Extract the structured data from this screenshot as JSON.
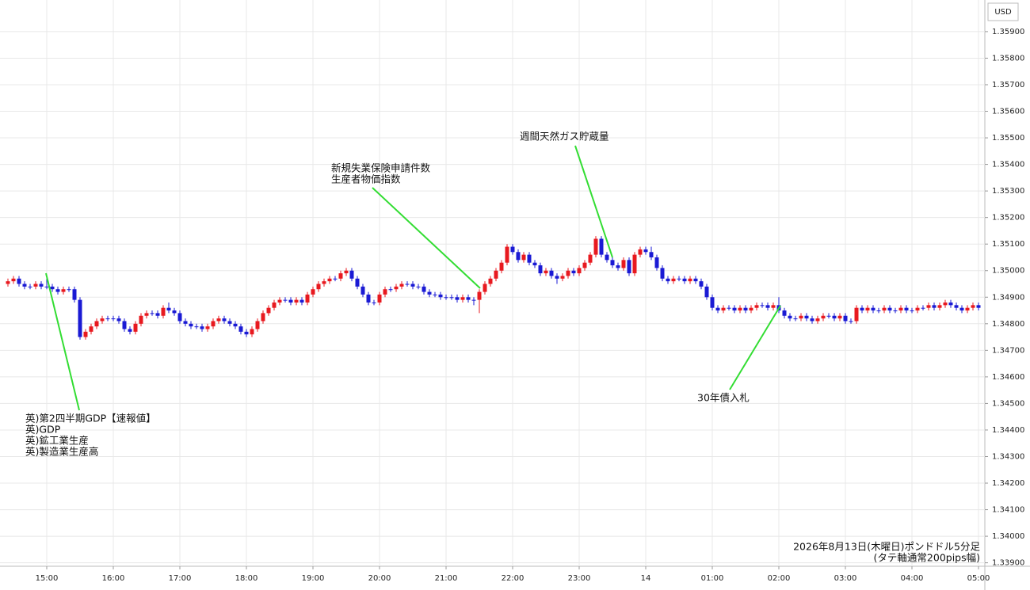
{
  "chart_data": {
    "type": "candlestick",
    "currency": "USD",
    "up_color": "#e8191f",
    "down_color": "#1a1ad4",
    "grid": true,
    "ylim": [
      1.33887,
      1.36019
    ],
    "yticks": [
      {
        "value": 1.359,
        "label": "1.35900"
      },
      {
        "value": 1.358,
        "label": "1.35800"
      },
      {
        "value": 1.357,
        "label": "1.35700"
      },
      {
        "value": 1.356,
        "label": "1.35600"
      },
      {
        "value": 1.355,
        "label": "1.35500"
      },
      {
        "value": 1.354,
        "label": "1.35400"
      },
      {
        "value": 1.353,
        "label": "1.35300"
      },
      {
        "value": 1.352,
        "label": "1.35200"
      },
      {
        "value": 1.351,
        "label": "1.35100"
      },
      {
        "value": 1.35,
        "label": "1.35000"
      },
      {
        "value": 1.349,
        "label": "1.34900"
      },
      {
        "value": 1.348,
        "label": "1.34800"
      },
      {
        "value": 1.347,
        "label": "1.34700"
      },
      {
        "value": 1.346,
        "label": "1.34600"
      },
      {
        "value": 1.345,
        "label": "1.34500"
      },
      {
        "value": 1.344,
        "label": "1.34400"
      },
      {
        "value": 1.343,
        "label": "1.34300"
      },
      {
        "value": 1.342,
        "label": "1.34200"
      },
      {
        "value": 1.341,
        "label": "1.34100"
      },
      {
        "value": 1.34,
        "label": "1.34000"
      },
      {
        "value": 1.339,
        "label": "1.33900"
      }
    ],
    "categories": [
      null,
      null,
      null,
      null,
      null,
      null,
      null,
      "15:00",
      null,
      null,
      null,
      null,
      null,
      null,
      null,
      null,
      null,
      null,
      null,
      "16:00",
      null,
      null,
      null,
      null,
      null,
      null,
      null,
      null,
      null,
      null,
      null,
      "17:00",
      null,
      null,
      null,
      null,
      null,
      null,
      null,
      null,
      null,
      null,
      null,
      "18:00",
      null,
      null,
      null,
      null,
      null,
      null,
      null,
      null,
      null,
      null,
      null,
      "19:00",
      null,
      null,
      null,
      null,
      null,
      null,
      null,
      null,
      null,
      null,
      null,
      "20:00",
      null,
      null,
      null,
      null,
      null,
      null,
      null,
      null,
      null,
      null,
      null,
      "21:00",
      null,
      null,
      null,
      null,
      null,
      null,
      null,
      null,
      null,
      null,
      null,
      "22:00",
      null,
      null,
      null,
      null,
      null,
      null,
      null,
      null,
      null,
      null,
      null,
      "23:00",
      null,
      null,
      null,
      null,
      null,
      null,
      null,
      null,
      null,
      null,
      null,
      "14",
      null,
      null,
      null,
      null,
      null,
      null,
      null,
      null,
      null,
      null,
      null,
      "01:00",
      null,
      null,
      null,
      null,
      null,
      null,
      null,
      null,
      null,
      null,
      null,
      "02:00",
      null,
      null,
      null,
      null,
      null,
      null,
      null,
      null,
      null,
      null,
      null,
      "03:00",
      null,
      null,
      null,
      null,
      null,
      null,
      null,
      null,
      null,
      null,
      null,
      "04:00",
      null,
      null,
      null,
      null,
      null,
      null,
      null,
      null,
      null,
      null,
      null,
      "05:00"
    ],
    "candles": [
      [
        1.3495,
        1.3497,
        1.3494,
        1.3496
      ],
      [
        1.3496,
        1.3498,
        1.3495,
        1.3497
      ],
      [
        1.3497,
        1.3498,
        1.3494,
        1.3495
      ],
      [
        1.3495,
        1.3496,
        1.3493,
        1.3494
      ],
      [
        1.3494,
        1.3495,
        1.3493,
        1.3494
      ],
      [
        1.3494,
        1.3496,
        1.3493,
        1.3495
      ],
      [
        1.3495,
        1.3496,
        1.3493,
        1.3494
      ],
      [
        1.3494,
        1.3498,
        1.3493,
        1.3494
      ],
      [
        1.3494,
        1.3495,
        1.3492,
        1.3493
      ],
      [
        1.3493,
        1.3494,
        1.3491,
        1.3492
      ],
      [
        1.3492,
        1.3494,
        1.3491,
        1.3493
      ],
      [
        1.3493,
        1.3494,
        1.3492,
        1.3493
      ],
      [
        1.3493,
        1.3494,
        1.3488,
        1.3489
      ],
      [
        1.3489,
        1.349,
        1.3474,
        1.3475
      ],
      [
        1.3475,
        1.3478,
        1.3474,
        1.3477
      ],
      [
        1.3477,
        1.348,
        1.3476,
        1.3479
      ],
      [
        1.3479,
        1.3482,
        1.3478,
        1.3481
      ],
      [
        1.3481,
        1.3483,
        1.348,
        1.3482
      ],
      [
        1.3482,
        1.3483,
        1.3481,
        1.3482
      ],
      [
        1.3482,
        1.3483,
        1.3481,
        1.3482
      ],
      [
        1.3482,
        1.3483,
        1.348,
        1.3481
      ],
      [
        1.3481,
        1.3482,
        1.3477,
        1.3478
      ],
      [
        1.3478,
        1.3479,
        1.3476,
        1.3477
      ],
      [
        1.3477,
        1.3481,
        1.3476,
        1.348
      ],
      [
        1.348,
        1.3484,
        1.3479,
        1.3483
      ],
      [
        1.3483,
        1.3485,
        1.3482,
        1.3484
      ],
      [
        1.3484,
        1.3485,
        1.3483,
        1.3484
      ],
      [
        1.3484,
        1.3485,
        1.3482,
        1.3483
      ],
      [
        1.3483,
        1.3487,
        1.3482,
        1.3486
      ],
      [
        1.3486,
        1.3488,
        1.3484,
        1.3485
      ],
      [
        1.3485,
        1.3486,
        1.3483,
        1.3484
      ],
      [
        1.3484,
        1.3485,
        1.348,
        1.3481
      ],
      [
        1.3481,
        1.3482,
        1.3479,
        1.348
      ],
      [
        1.348,
        1.3481,
        1.3478,
        1.3479
      ],
      [
        1.3479,
        1.348,
        1.3478,
        1.3479
      ],
      [
        1.3479,
        1.348,
        1.3477,
        1.3478
      ],
      [
        1.3478,
        1.348,
        1.3477,
        1.3479
      ],
      [
        1.3479,
        1.3482,
        1.3478,
        1.3481
      ],
      [
        1.3481,
        1.3483,
        1.348,
        1.3482
      ],
      [
        1.3482,
        1.3483,
        1.348,
        1.3481
      ],
      [
        1.3481,
        1.3482,
        1.3479,
        1.348
      ],
      [
        1.348,
        1.3481,
        1.3478,
        1.3479
      ],
      [
        1.3479,
        1.348,
        1.3476,
        1.3477
      ],
      [
        1.3477,
        1.3478,
        1.3475,
        1.3476
      ],
      [
        1.3476,
        1.3479,
        1.3475,
        1.3478
      ],
      [
        1.3478,
        1.3482,
        1.3477,
        1.3481
      ],
      [
        1.3481,
        1.3485,
        1.348,
        1.3484
      ],
      [
        1.3484,
        1.3487,
        1.3483,
        1.3486
      ],
      [
        1.3486,
        1.3489,
        1.3485,
        1.3488
      ],
      [
        1.3488,
        1.349,
        1.3487,
        1.3489
      ],
      [
        1.3489,
        1.349,
        1.3488,
        1.3489
      ],
      [
        1.3489,
        1.349,
        1.3487,
        1.3488
      ],
      [
        1.3488,
        1.349,
        1.3487,
        1.3489
      ],
      [
        1.3489,
        1.349,
        1.3487,
        1.3488
      ],
      [
        1.3488,
        1.3492,
        1.3487,
        1.3491
      ],
      [
        1.3491,
        1.3494,
        1.349,
        1.3493
      ],
      [
        1.3493,
        1.3496,
        1.3492,
        1.3495
      ],
      [
        1.3495,
        1.3497,
        1.3494,
        1.3496
      ],
      [
        1.3496,
        1.3498,
        1.3495,
        1.3497
      ],
      [
        1.3497,
        1.3498,
        1.3496,
        1.3497
      ],
      [
        1.3497,
        1.35,
        1.3496,
        1.3499
      ],
      [
        1.3499,
        1.3501,
        1.3498,
        1.35
      ],
      [
        1.35,
        1.3501,
        1.3496,
        1.3497
      ],
      [
        1.3497,
        1.3498,
        1.3493,
        1.3494
      ],
      [
        1.3494,
        1.3495,
        1.349,
        1.3491
      ],
      [
        1.3491,
        1.3492,
        1.3487,
        1.3488
      ],
      [
        1.3488,
        1.3489,
        1.3487,
        1.3488
      ],
      [
        1.3488,
        1.3492,
        1.3487,
        1.3491
      ],
      [
        1.3491,
        1.3494,
        1.349,
        1.3493
      ],
      [
        1.3493,
        1.3494,
        1.3492,
        1.3493
      ],
      [
        1.3493,
        1.3495,
        1.3492,
        1.3494
      ],
      [
        1.3494,
        1.3496,
        1.3493,
        1.3495
      ],
      [
        1.3495,
        1.3496,
        1.3494,
        1.3495
      ],
      [
        1.3495,
        1.3496,
        1.3493,
        1.3494
      ],
      [
        1.3494,
        1.3495,
        1.3493,
        1.3494
      ],
      [
        1.3494,
        1.3495,
        1.3491,
        1.3492
      ],
      [
        1.3492,
        1.3493,
        1.349,
        1.3491
      ],
      [
        1.3491,
        1.3492,
        1.349,
        1.3491
      ],
      [
        1.3491,
        1.3492,
        1.3489,
        1.349
      ],
      [
        1.349,
        1.3491,
        1.3489,
        1.349
      ],
      [
        1.349,
        1.3491,
        1.3489,
        1.349
      ],
      [
        1.349,
        1.3491,
        1.3488,
        1.3489
      ],
      [
        1.3489,
        1.3491,
        1.3488,
        1.349
      ],
      [
        1.349,
        1.3491,
        1.3488,
        1.3489
      ],
      [
        1.3489,
        1.349,
        1.3487,
        1.3489
      ],
      [
        1.3489,
        1.3493,
        1.3484,
        1.3492
      ],
      [
        1.3492,
        1.3496,
        1.3491,
        1.3495
      ],
      [
        1.3495,
        1.3498,
        1.3494,
        1.3497
      ],
      [
        1.3497,
        1.3501,
        1.3496,
        1.35
      ],
      [
        1.35,
        1.3504,
        1.3499,
        1.3503
      ],
      [
        1.3503,
        1.351,
        1.3502,
        1.3509
      ],
      [
        1.3509,
        1.351,
        1.3506,
        1.3507
      ],
      [
        1.3507,
        1.3508,
        1.3503,
        1.3504
      ],
      [
        1.3504,
        1.3507,
        1.3503,
        1.3506
      ],
      [
        1.3506,
        1.3507,
        1.3502,
        1.3503
      ],
      [
        1.3503,
        1.3504,
        1.3501,
        1.3502
      ],
      [
        1.3502,
        1.3503,
        1.3498,
        1.3499
      ],
      [
        1.3499,
        1.3501,
        1.3498,
        1.35
      ],
      [
        1.35,
        1.3501,
        1.3497,
        1.3498
      ],
      [
        1.3498,
        1.3499,
        1.3495,
        1.3497
      ],
      [
        1.3497,
        1.3499,
        1.3496,
        1.3498
      ],
      [
        1.3498,
        1.3501,
        1.3497,
        1.35
      ],
      [
        1.35,
        1.3501,
        1.3498,
        1.3499
      ],
      [
        1.3499,
        1.3502,
        1.3498,
        1.3501
      ],
      [
        1.3501,
        1.3504,
        1.35,
        1.3503
      ],
      [
        1.3503,
        1.3507,
        1.3502,
        1.3506
      ],
      [
        1.3506,
        1.3513,
        1.3505,
        1.3512
      ],
      [
        1.3512,
        1.3513,
        1.3505,
        1.3506
      ],
      [
        1.3506,
        1.3507,
        1.3503,
        1.3504
      ],
      [
        1.3504,
        1.3505,
        1.3501,
        1.3502
      ],
      [
        1.3502,
        1.3503,
        1.35,
        1.3501
      ],
      [
        1.3501,
        1.3505,
        1.35,
        1.3504
      ],
      [
        1.3504,
        1.3505,
        1.3498,
        1.3499
      ],
      [
        1.3499,
        1.3507,
        1.3498,
        1.3506
      ],
      [
        1.3506,
        1.3509,
        1.3505,
        1.3508
      ],
      [
        1.3508,
        1.3509,
        1.3506,
        1.3507
      ],
      [
        1.3507,
        1.3509,
        1.3504,
        1.3505
      ],
      [
        1.3505,
        1.3506,
        1.35,
        1.3501
      ],
      [
        1.3501,
        1.3502,
        1.3496,
        1.3497
      ],
      [
        1.3497,
        1.3498,
        1.3495,
        1.3496
      ],
      [
        1.3496,
        1.3498,
        1.3495,
        1.3497
      ],
      [
        1.3497,
        1.3498,
        1.3496,
        1.3497
      ],
      [
        1.3497,
        1.3498,
        1.3495,
        1.3496
      ],
      [
        1.3496,
        1.3498,
        1.3495,
        1.3497
      ],
      [
        1.3497,
        1.3498,
        1.3495,
        1.3496
      ],
      [
        1.3496,
        1.3497,
        1.3493,
        1.3494
      ],
      [
        1.3494,
        1.3495,
        1.3489,
        1.349
      ],
      [
        1.349,
        1.3491,
        1.3485,
        1.3486
      ],
      [
        1.3486,
        1.3487,
        1.3484,
        1.3485
      ],
      [
        1.3485,
        1.3487,
        1.3484,
        1.3486
      ],
      [
        1.3486,
        1.3487,
        1.3485,
        1.3486
      ],
      [
        1.3486,
        1.3487,
        1.3484,
        1.3485
      ],
      [
        1.3485,
        1.3487,
        1.3484,
        1.3486
      ],
      [
        1.3486,
        1.3487,
        1.3484,
        1.3485
      ],
      [
        1.3485,
        1.3487,
        1.3484,
        1.3486
      ],
      [
        1.3486,
        1.3488,
        1.3485,
        1.3487
      ],
      [
        1.3487,
        1.3488,
        1.3486,
        1.3487
      ],
      [
        1.3487,
        1.3488,
        1.3485,
        1.3486
      ],
      [
        1.3486,
        1.3488,
        1.3485,
        1.3487
      ],
      [
        1.3487,
        1.349,
        1.3484,
        1.3485
      ],
      [
        1.3485,
        1.3486,
        1.3482,
        1.3483
      ],
      [
        1.3483,
        1.3484,
        1.3481,
        1.3482
      ],
      [
        1.3482,
        1.3483,
        1.3481,
        1.3482
      ],
      [
        1.3482,
        1.3484,
        1.3481,
        1.3483
      ],
      [
        1.3483,
        1.3484,
        1.3481,
        1.3482
      ],
      [
        1.3482,
        1.3483,
        1.348,
        1.3481
      ],
      [
        1.3481,
        1.3483,
        1.348,
        1.3482
      ],
      [
        1.3482,
        1.3484,
        1.3481,
        1.3483
      ],
      [
        1.3483,
        1.3484,
        1.3482,
        1.3483
      ],
      [
        1.3483,
        1.3484,
        1.3481,
        1.3482
      ],
      [
        1.3482,
        1.3484,
        1.3481,
        1.3483
      ],
      [
        1.3483,
        1.3484,
        1.348,
        1.3481
      ],
      [
        1.3481,
        1.3482,
        1.348,
        1.3481
      ],
      [
        1.3481,
        1.3487,
        1.348,
        1.3486
      ],
      [
        1.3486,
        1.3487,
        1.3484,
        1.3485
      ],
      [
        1.3485,
        1.3487,
        1.3484,
        1.3486
      ],
      [
        1.3486,
        1.3487,
        1.3484,
        1.3485
      ],
      [
        1.3485,
        1.3486,
        1.3484,
        1.3485
      ],
      [
        1.3485,
        1.3487,
        1.3484,
        1.3486
      ],
      [
        1.3486,
        1.3487,
        1.3484,
        1.3485
      ],
      [
        1.3485,
        1.3486,
        1.3484,
        1.3485
      ],
      [
        1.3485,
        1.3487,
        1.3484,
        1.3486
      ],
      [
        1.3486,
        1.3487,
        1.3484,
        1.3485
      ],
      [
        1.3485,
        1.3486,
        1.3484,
        1.3485
      ],
      [
        1.3485,
        1.3487,
        1.3484,
        1.3486
      ],
      [
        1.3486,
        1.3487,
        1.3485,
        1.3486
      ],
      [
        1.3486,
        1.3488,
        1.3485,
        1.3487
      ],
      [
        1.3487,
        1.3488,
        1.3485,
        1.3486
      ],
      [
        1.3486,
        1.3488,
        1.3485,
        1.3487
      ],
      [
        1.3487,
        1.3489,
        1.3486,
        1.3488
      ],
      [
        1.3488,
        1.3489,
        1.3486,
        1.3487
      ],
      [
        1.3487,
        1.3488,
        1.3485,
        1.3486
      ],
      [
        1.3486,
        1.3487,
        1.3484,
        1.3485
      ],
      [
        1.3485,
        1.3487,
        1.3484,
        1.3486
      ],
      [
        1.3486,
        1.3488,
        1.3485,
        1.3487
      ],
      [
        1.3487,
        1.3488,
        1.3485,
        1.3486
      ]
    ],
    "annotations": [
      {
        "lines": [
          "英)第2四半期GDP【速報値】",
          "英)GDP",
          "英)鉱工業生産",
          "英)製造業生産高"
        ]
      },
      {
        "lines": [
          "新規失業保険申請件数",
          "生産者物価指数"
        ]
      },
      {
        "lines": [
          "週間天然ガス貯蔵量"
        ]
      },
      {
        "lines": [
          "30年債入札"
        ]
      }
    ],
    "footer": [
      "2026年8月13日(木曜日)ポンドドル5分足",
      "(タテ軸通常200pips幅)"
    ]
  }
}
